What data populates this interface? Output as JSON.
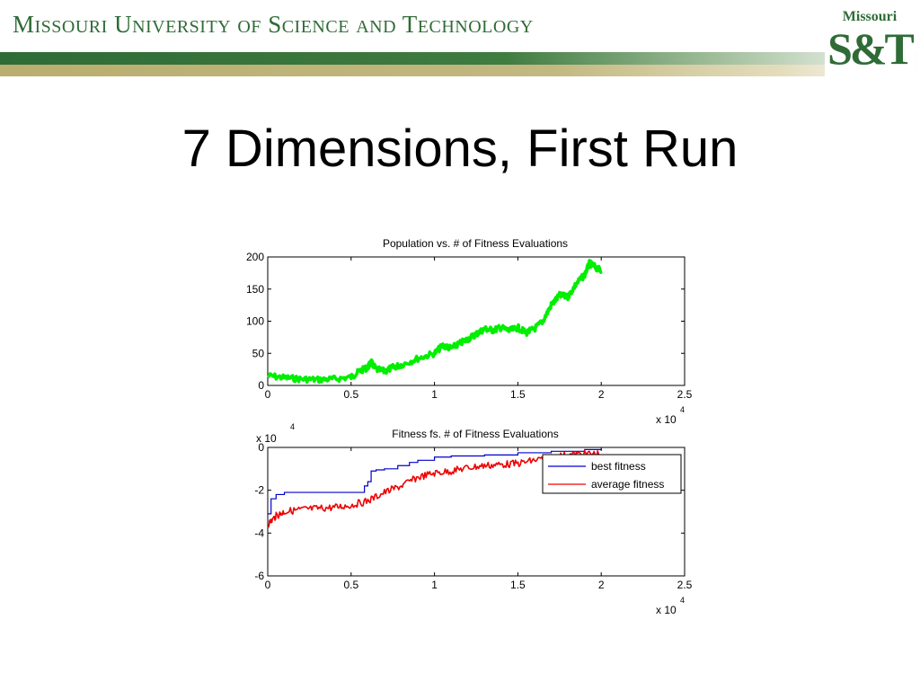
{
  "header": {
    "university": "Missouri University of Science and Technology",
    "logo_top": "Missouri",
    "logo_main": "S&T"
  },
  "slide": {
    "title": "7 Dimensions, First Run"
  },
  "colors": {
    "green": "#00ee00",
    "blue": "#0000cc",
    "red": "#ee0000",
    "brand": "#2f6b36"
  },
  "chart_data": [
    {
      "type": "line",
      "title": "Population vs. # of Fitness Evaluations",
      "xlabel": "",
      "ylabel": "",
      "x_multiplier": "x 10",
      "x_multiplier_exp": "4",
      "xlim": [
        0,
        2.5
      ],
      "ylim": [
        0,
        200
      ],
      "xticks": [
        "0",
        "0.5",
        "1",
        "1.5",
        "2",
        "2.5"
      ],
      "yticks": [
        "0",
        "50",
        "100",
        "150",
        "200"
      ],
      "series": [
        {
          "name": "",
          "color": "#00ee00",
          "x": [
            0,
            0.1,
            0.2,
            0.3,
            0.4,
            0.5,
            0.55,
            0.6,
            0.62,
            0.65,
            0.7,
            0.75,
            0.8,
            0.9,
            1.0,
            1.05,
            1.1,
            1.15,
            1.2,
            1.25,
            1.3,
            1.35,
            1.4,
            1.45,
            1.5,
            1.55,
            1.6,
            1.65,
            1.7,
            1.75,
            1.8,
            1.85,
            1.9,
            1.93,
            1.96,
            2.0
          ],
          "y": [
            15,
            12,
            10,
            9,
            10,
            13,
            22,
            28,
            36,
            25,
            22,
            28,
            32,
            42,
            50,
            62,
            58,
            65,
            72,
            80,
            88,
            86,
            90,
            85,
            90,
            82,
            88,
            100,
            125,
            140,
            138,
            158,
            172,
            190,
            185,
            178
          ]
        }
      ]
    },
    {
      "type": "line",
      "title": "Fitness fs. # of Fitness Evaluations",
      "xlabel": "",
      "ylabel": "",
      "x_multiplier": "x 10",
      "x_multiplier_exp": "4",
      "y_multiplier": "x 10",
      "y_multiplier_exp": "4",
      "xlim": [
        0,
        2.5
      ],
      "ylim": [
        -6,
        0
      ],
      "xticks": [
        "0",
        "0.5",
        "1",
        "1.5",
        "2",
        "2.5"
      ],
      "yticks": [
        "0",
        "-2",
        "-4",
        "-6"
      ],
      "legend_position": "top-right",
      "series": [
        {
          "name": "best fitness",
          "color": "#0000cc",
          "x": [
            0,
            0.02,
            0.05,
            0.1,
            0.3,
            0.58,
            0.6,
            0.62,
            0.65,
            0.7,
            0.78,
            0.85,
            0.9,
            1.0,
            1.1,
            1.3,
            1.5,
            1.7,
            1.9,
            2.0
          ],
          "y": [
            -3.1,
            -2.4,
            -2.2,
            -2.1,
            -2.1,
            -1.8,
            -1.6,
            -1.1,
            -1.05,
            -1.0,
            -0.85,
            -0.7,
            -0.6,
            -0.45,
            -0.4,
            -0.35,
            -0.25,
            -0.18,
            -0.1,
            -0.05
          ]
        },
        {
          "name": "average fitness",
          "color": "#ee0000",
          "x": [
            0,
            0.05,
            0.1,
            0.2,
            0.3,
            0.4,
            0.5,
            0.6,
            0.7,
            0.8,
            0.9,
            1.0,
            1.1,
            1.2,
            1.3,
            1.4,
            1.5,
            1.6,
            1.7,
            1.8,
            1.9,
            2.0
          ],
          "y": [
            -3.6,
            -3.2,
            -3.0,
            -2.9,
            -2.85,
            -2.8,
            -2.7,
            -2.5,
            -2.1,
            -1.8,
            -1.4,
            -1.2,
            -1.1,
            -0.95,
            -0.85,
            -0.8,
            -0.75,
            -0.6,
            -0.45,
            -0.35,
            -0.3,
            -0.3
          ]
        }
      ]
    }
  ]
}
